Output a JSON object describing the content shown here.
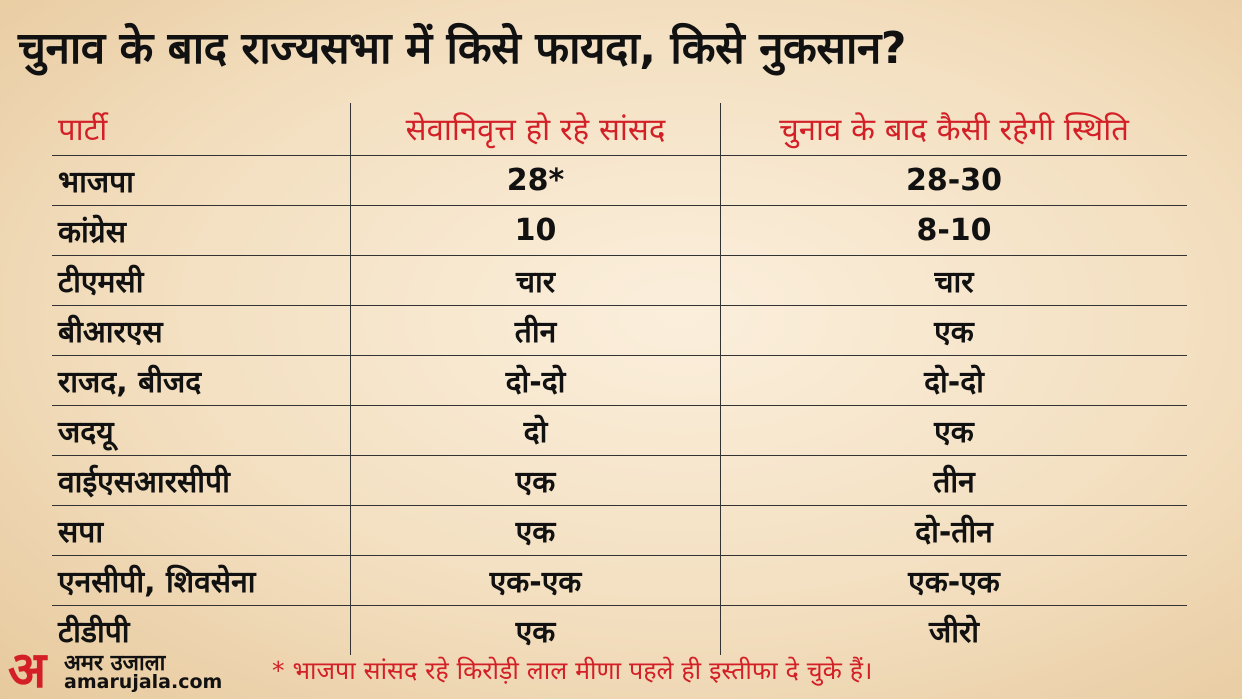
{
  "title": "चुनाव के बाद राज्यसभा में किसे फायदा, किसे नुकसान?",
  "columns": [
    "पार्टी",
    "सेवानिवृत्त हो रहे सांसद",
    "चुनाव के बाद कैसी रहेगी स्थिति"
  ],
  "rows": [
    [
      "भाजपा",
      "28*",
      "28-30"
    ],
    [
      "कांग्रेस",
      "10",
      "8-10"
    ],
    [
      "टीएमसी",
      "चार",
      "चार"
    ],
    [
      "बीआरएस",
      "तीन",
      "एक"
    ],
    [
      "राजद, बीजद",
      "दो-दो",
      "दो-दो"
    ],
    [
      "जदयू",
      "दो",
      "एक"
    ],
    [
      "वाईएसआरसीपी",
      "एक",
      "तीन"
    ],
    [
      "सपा",
      "एक",
      "दो-तीन"
    ],
    [
      "एनसीपी, शिवसेना",
      "एक-एक",
      "एक-एक"
    ],
    [
      "टीडीपी",
      "एक",
      "जीरो"
    ]
  ],
  "footnote": "* भाजपा सांसद रहे किरोड़ी लाल मीणा पहले ही इस्तीफा दे चुके हैं।",
  "logo": {
    "mark": "अ",
    "name": "अमर उजाला",
    "url": "amarujala.com"
  },
  "colors": {
    "accent": "#d32027",
    "text": "#111111"
  }
}
